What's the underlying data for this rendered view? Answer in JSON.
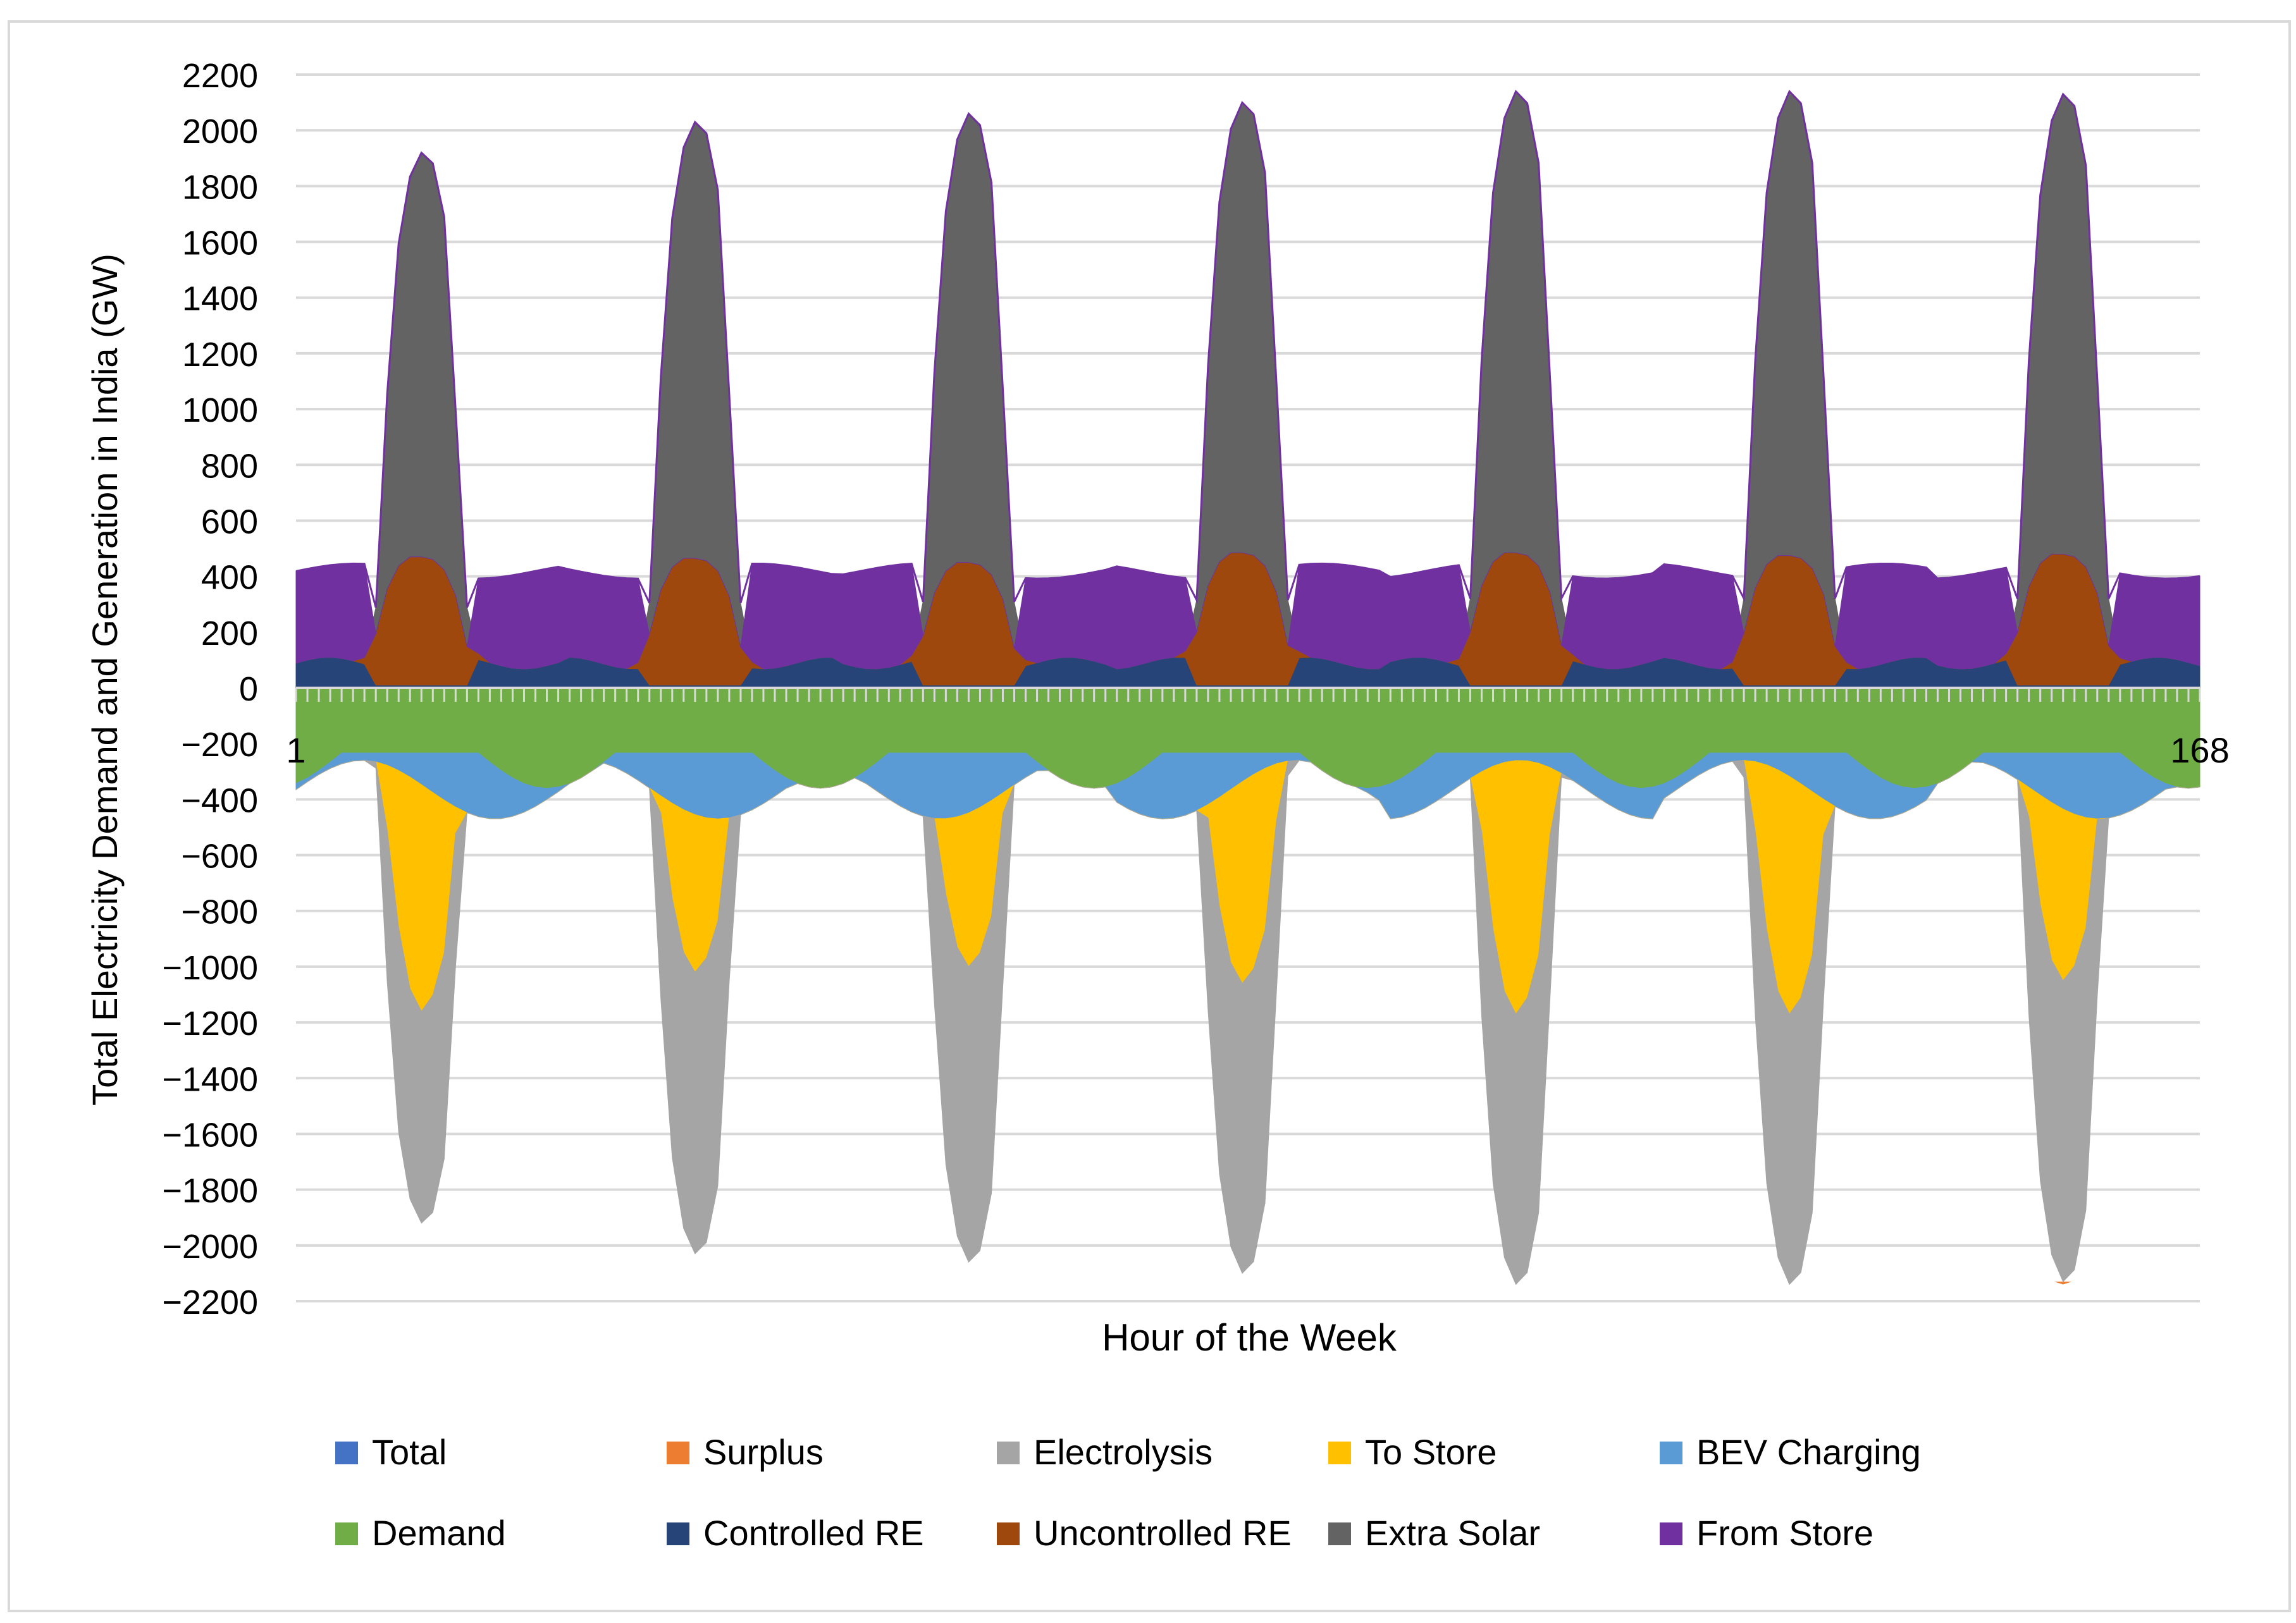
{
  "chart_data": {
    "type": "area",
    "title": "",
    "xlabel": "Hour of the Week",
    "ylabel": "Total Electricity Demand and Generation in India (GW)",
    "x_range": [
      1,
      168
    ],
    "x_tick_labels": [
      "1",
      "168"
    ],
    "ylim": [
      -2200,
      2200
    ],
    "y_ticks": [
      2200,
      2000,
      1800,
      1600,
      1400,
      1200,
      1000,
      800,
      600,
      400,
      200,
      0,
      -200,
      -400,
      -600,
      -800,
      -1000,
      -1200,
      -1400,
      -1600,
      -1800,
      -2000,
      -2200
    ],
    "grid": "horizontal",
    "legend_position": "bottom",
    "days": 7,
    "hours_per_day": 24,
    "legend": [
      {
        "name": "Total",
        "color": "#4472C4"
      },
      {
        "name": "Surplus",
        "color": "#ED7D31"
      },
      {
        "name": "Electrolysis",
        "color": "#A5A5A5"
      },
      {
        "name": "To Store",
        "color": "#FFC000"
      },
      {
        "name": "BEV Charging",
        "color": "#5B9BD5"
      },
      {
        "name": "Demand",
        "color": "#70AD47"
      },
      {
        "name": "Controlled RE",
        "color": "#264478"
      },
      {
        "name": "Uncontrolled RE",
        "color": "#9E480E"
      },
      {
        "name": "Extra Solar",
        "color": "#636363"
      },
      {
        "name": "From Store",
        "color": "#7030A0"
      }
    ],
    "daily_peak_generation": [
      1920,
      2030,
      2060,
      2100,
      2140,
      2140,
      2130
    ],
    "daily_peak_electrolysis_negative": [
      -1920,
      -2030,
      -2060,
      -2100,
      -2140,
      -2140,
      -2130
    ],
    "daily_uncontrolled_re_peak": [
      460,
      455,
      440,
      475,
      475,
      465,
      470
    ],
    "daily_to_store_trough": [
      -1160,
      -1020,
      -1000,
      -1060,
      -1170,
      -1170,
      -1050
    ],
    "from_store_night_level_range": [
      350,
      470
    ],
    "controlled_re_night_level_range": [
      40,
      110
    ],
    "demand_level_range": [
      -360,
      -130
    ],
    "bev_charging_level_range": [
      -470,
      -260
    ],
    "surplus_peak_day7": -2140
  }
}
